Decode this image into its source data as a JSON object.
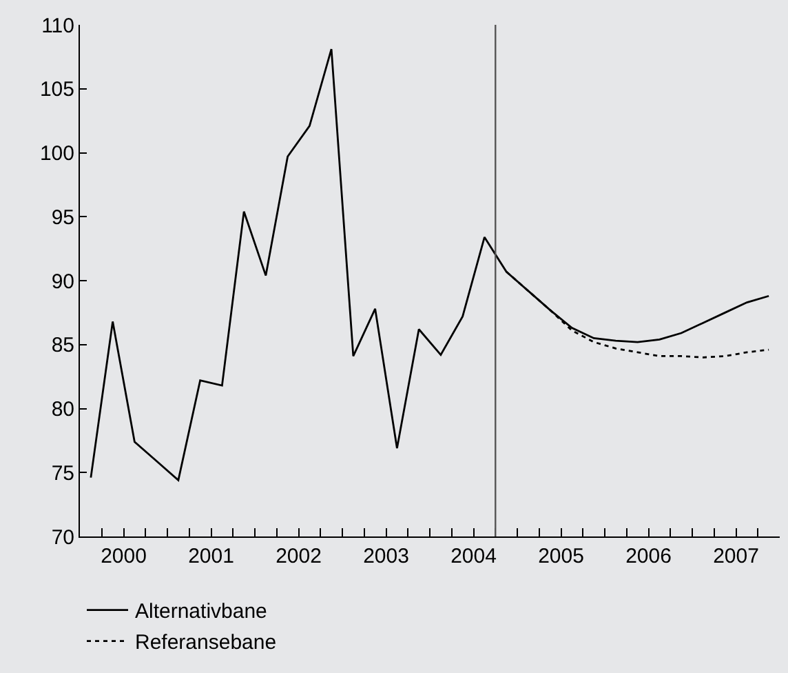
{
  "chart_data": {
    "type": "line",
    "xlim": [
      2000,
      2008
    ],
    "xticks": [
      {
        "value": 2000,
        "label": null
      },
      {
        "value": 2000.25,
        "label": null
      },
      {
        "value": 2000.5,
        "label": "2000"
      },
      {
        "value": 2000.75,
        "label": null
      },
      {
        "value": 2001,
        "label": null
      },
      {
        "value": 2001.25,
        "label": null
      },
      {
        "value": 2001.5,
        "label": "2001"
      },
      {
        "value": 2001.75,
        "label": null
      },
      {
        "value": 2002,
        "label": null
      },
      {
        "value": 2002.25,
        "label": null
      },
      {
        "value": 2002.5,
        "label": "2002"
      },
      {
        "value": 2002.75,
        "label": null
      },
      {
        "value": 2003,
        "label": null
      },
      {
        "value": 2003.25,
        "label": null
      },
      {
        "value": 2003.5,
        "label": "2003"
      },
      {
        "value": 2003.75,
        "label": null
      },
      {
        "value": 2004,
        "label": null
      },
      {
        "value": 2004.25,
        "label": null
      },
      {
        "value": 2004.5,
        "label": "2004"
      },
      {
        "value": 2004.75,
        "label": null
      },
      {
        "value": 2005,
        "label": null
      },
      {
        "value": 2005.25,
        "label": null
      },
      {
        "value": 2005.5,
        "label": "2005"
      },
      {
        "value": 2005.75,
        "label": null
      },
      {
        "value": 2006,
        "label": null
      },
      {
        "value": 2006.25,
        "label": null
      },
      {
        "value": 2006.5,
        "label": "2006"
      },
      {
        "value": 2006.75,
        "label": null
      },
      {
        "value": 2007,
        "label": null
      },
      {
        "value": 2007.25,
        "label": null
      },
      {
        "value": 2007.5,
        "label": "2007"
      },
      {
        "value": 2007.75,
        "label": null
      }
    ],
    "ylim": [
      70,
      110
    ],
    "yticks": [
      70,
      75,
      80,
      85,
      90,
      95,
      100,
      105,
      110
    ],
    "grid": false,
    "legend": "bottom left",
    "marker": "none",
    "ref_lines": [
      {
        "axis": "x",
        "value": 2004.75,
        "color": "#555555"
      }
    ],
    "series": [
      {
        "name": "Alternativbane",
        "color": "#000000",
        "line_style": "solid",
        "x": [
          2000.125,
          2000.375,
          2000.625,
          2000.875,
          2001.125,
          2001.375,
          2001.625,
          2001.875,
          2002.125,
          2002.375,
          2002.625,
          2002.875,
          2003.125,
          2003.375,
          2003.625,
          2003.875,
          2004.125,
          2004.375,
          2004.625,
          2004.875,
          2005.125,
          2005.375,
          2005.625,
          2005.875,
          2006.125,
          2006.375,
          2006.625,
          2006.875,
          2007.125,
          2007.375,
          2007.625,
          2007.875
        ],
        "values": [
          74.6,
          86.8,
          77.4,
          75.9,
          74.4,
          82.2,
          81.8,
          95.4,
          90.4,
          99.7,
          102.1,
          108.1,
          84.1,
          87.8,
          76.9,
          86.2,
          84.2,
          87.2,
          93.4,
          90.7,
          89.2,
          87.7,
          86.3,
          85.5,
          85.3,
          85.2,
          85.4,
          85.9,
          86.7,
          87.5,
          88.3,
          88.8
        ]
      },
      {
        "name": "Referansebane",
        "color": "#000000",
        "line_style": "dashed",
        "x": [
          2004.875,
          2005.125,
          2005.375,
          2005.625,
          2005.875,
          2006.125,
          2006.375,
          2006.625,
          2006.875,
          2007.125,
          2007.375,
          2007.625,
          2007.875
        ],
        "values": [
          90.7,
          89.2,
          87.7,
          86.1,
          85.2,
          84.7,
          84.4,
          84.1,
          84.1,
          84.0,
          84.1,
          84.4,
          84.6
        ]
      }
    ]
  }
}
